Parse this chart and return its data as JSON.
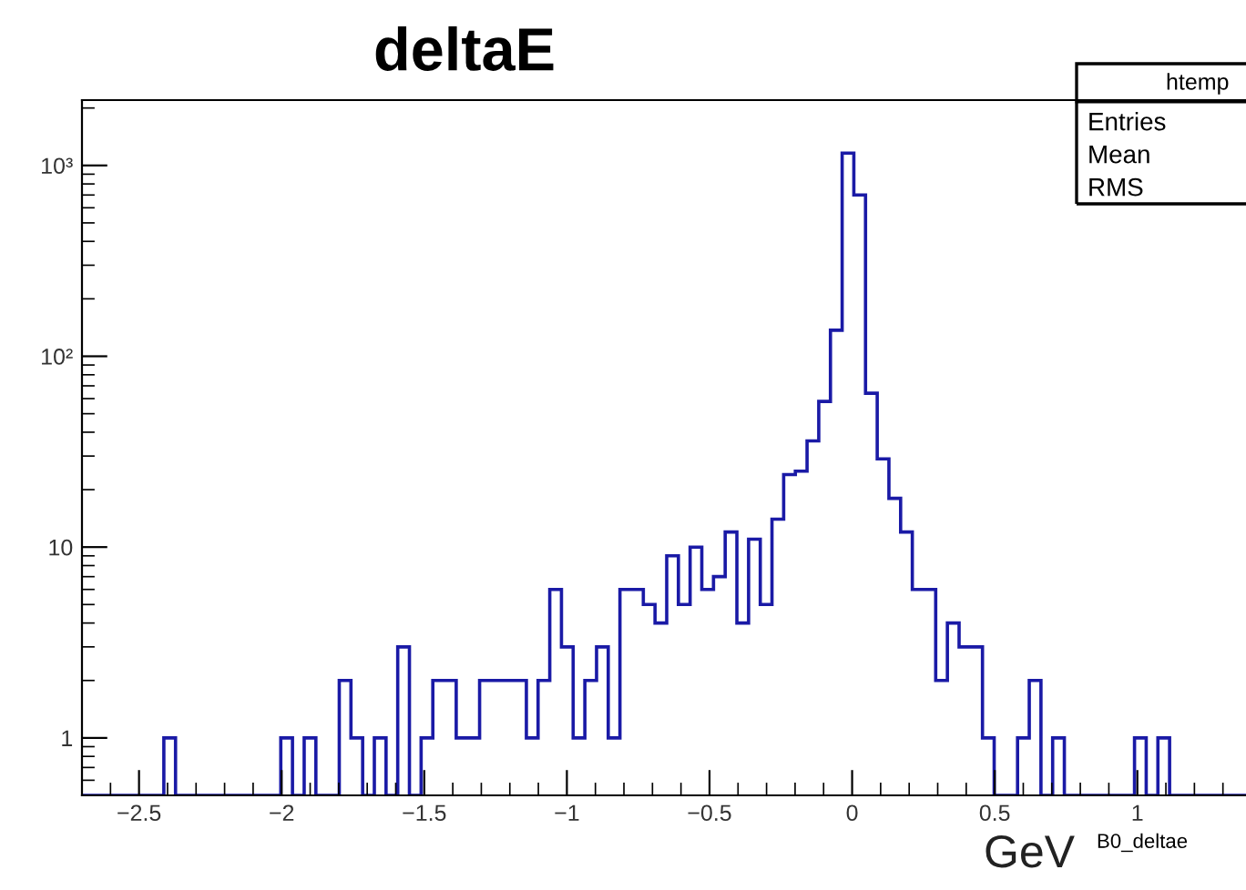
{
  "chart_data": {
    "type": "histogram",
    "title": "deltaE",
    "xlabel": "GeV",
    "bins": [
      -2.7,
      -2.659,
      -2.618,
      -2.577,
      -2.536,
      -2.495,
      -2.454,
      -2.413,
      -2.372,
      -2.331,
      -2.29,
      -2.249,
      -2.208,
      -2.167,
      -2.126,
      -2.085,
      -2.044,
      -2.003,
      -1.962,
      -1.921,
      -1.88,
      -1.839,
      -1.798,
      -1.757,
      -1.716,
      -1.675,
      -1.634,
      -1.593,
      -1.552,
      -1.511,
      -1.47,
      -1.429,
      -1.388,
      -1.347,
      -1.306,
      -1.265,
      -1.224,
      -1.183,
      -1.142,
      -1.101,
      -1.06,
      -1.019,
      -0.978,
      -0.937,
      -0.896,
      -0.855,
      -0.814,
      -0.773,
      -0.732,
      -0.691,
      -0.65,
      -0.609,
      -0.568,
      -0.527,
      -0.486,
      -0.445,
      -0.404,
      -0.363,
      -0.322,
      -0.281,
      -0.24,
      -0.199,
      -0.158,
      -0.117,
      -0.076,
      -0.035,
      0.006,
      0.047,
      0.088,
      0.129,
      0.17,
      0.211,
      0.252,
      0.293,
      0.334,
      0.375,
      0.416,
      0.457,
      0.498,
      0.539,
      0.58,
      0.621,
      0.662,
      0.703,
      0.744,
      0.785,
      0.826,
      0.867,
      0.908,
      0.949,
      0.99,
      1.031,
      1.072,
      1.113,
      1.154,
      1.195,
      1.236,
      1.277,
      1.318,
      1.359,
      1.4
    ],
    "values": [
      null,
      null,
      null,
      null,
      null,
      null,
      null,
      1,
      null,
      null,
      null,
      null,
      null,
      null,
      null,
      null,
      null,
      1,
      null,
      1,
      null,
      null,
      2,
      1,
      null,
      1,
      null,
      3,
      null,
      1,
      2,
      2,
      1,
      1,
      2,
      2,
      2,
      2,
      1,
      2,
      6,
      3,
      1,
      2,
      3,
      1,
      6,
      6,
      5,
      4,
      9,
      5,
      10,
      6,
      7,
      12,
      4,
      11,
      5,
      14,
      24,
      25,
      36,
      58,
      137,
      1160,
      700,
      64,
      29,
      18,
      12,
      6,
      6,
      2,
      4,
      3,
      3,
      1,
      null,
      null,
      1,
      2,
      null,
      1,
      null,
      null,
      null,
      null,
      null,
      null,
      1,
      null,
      1,
      null,
      null,
      null,
      null,
      null,
      null,
      null
    ],
    "color": "#1a1aa6",
    "log": "y",
    "xlim": [
      -2.7,
      1.4
    ],
    "ylim": [
      0.5,
      2200
    ],
    "xticks": [
      {
        "value": -2.5,
        "label": "−2.5"
      },
      {
        "value": -2,
        "label": "−2"
      },
      {
        "value": -1.5,
        "label": "−1.5"
      },
      {
        "value": -1,
        "label": "−1"
      },
      {
        "value": -0.5,
        "label": "−0.5"
      },
      0,
      0.5,
      1
    ],
    "yticks": [
      1,
      10,
      {
        "value": 100,
        "label": "10²"
      },
      {
        "value": 1000,
        "label": "10³"
      }
    ],
    "grid": false,
    "legend": false,
    "annotations": [
      "B0_deltae",
      "htemp",
      "Entries",
      "Mean",
      "RMS"
    ]
  }
}
